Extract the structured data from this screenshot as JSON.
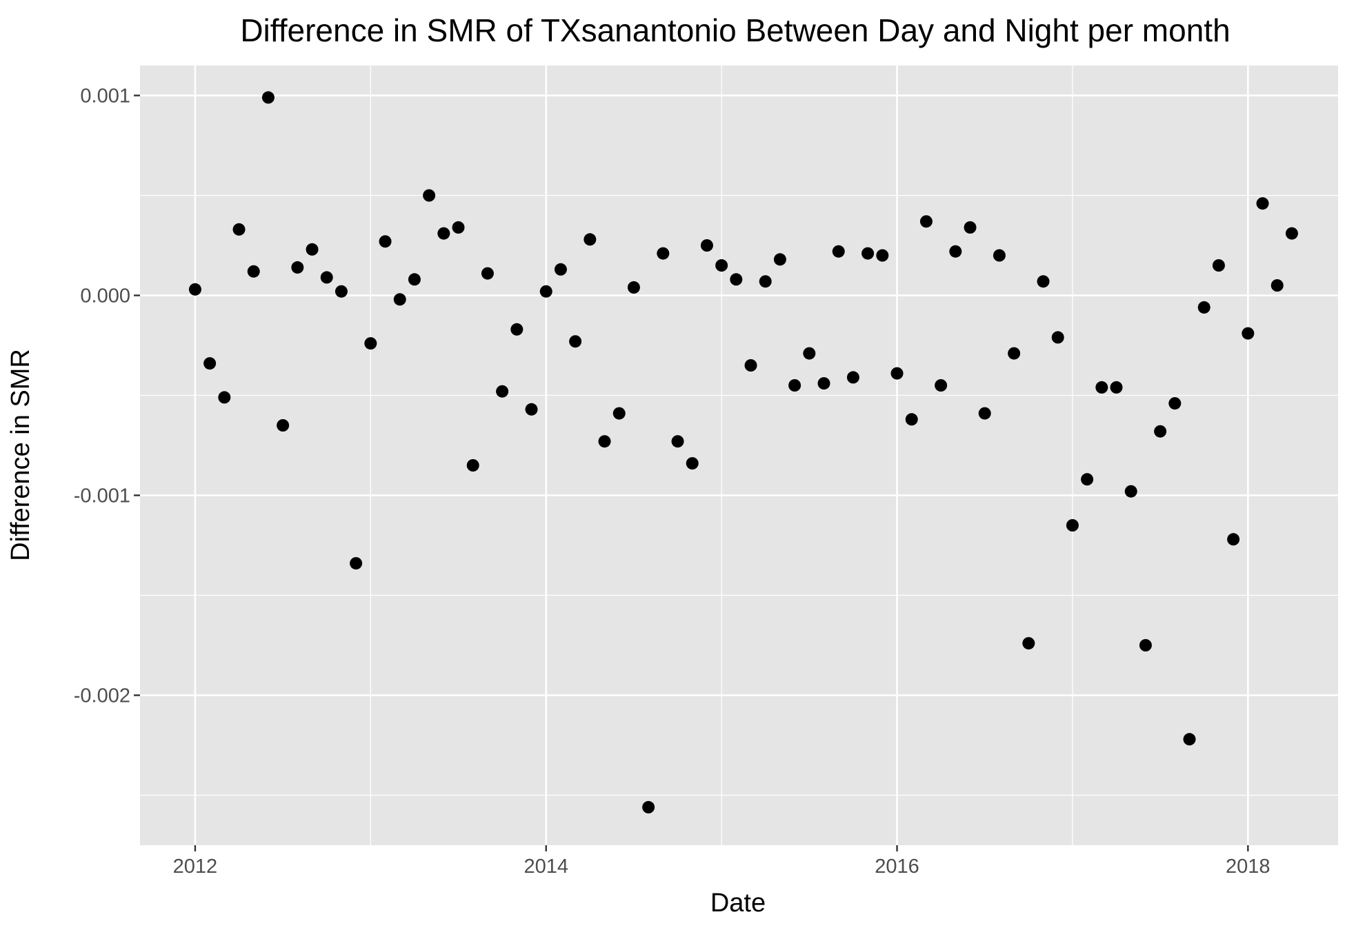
{
  "chart_data": {
    "type": "scatter",
    "title": "Difference in SMR of TXsanantonio Between Day and Night per month",
    "xlabel": "Date",
    "ylabel": "Difference in SMR",
    "x_ticks": [
      "2012",
      "2014",
      "2016",
      "2018"
    ],
    "y_ticks": [
      "0.001",
      "0.000",
      "-0.001",
      "-0.002"
    ],
    "xlim": [
      "2011-09-08",
      "2018-07-06"
    ],
    "ylim": [
      -0.00275,
      0.00115
    ],
    "grid": true,
    "legend": "none",
    "colors": {
      "panel_background": "#e5e5e5",
      "grid_line": "#ffffff",
      "point": "#000000",
      "tick_label": "#4d4d4d",
      "tick_mark": "#333333"
    },
    "points": [
      {
        "x": "2012-01",
        "y": 3e-05
      },
      {
        "x": "2012-02",
        "y": -0.00034
      },
      {
        "x": "2012-03",
        "y": -0.00051
      },
      {
        "x": "2012-04",
        "y": 0.00033
      },
      {
        "x": "2012-05",
        "y": 0.00012
      },
      {
        "x": "2012-06",
        "y": 0.00099
      },
      {
        "x": "2012-07",
        "y": -0.00065
      },
      {
        "x": "2012-08",
        "y": 0.00014
      },
      {
        "x": "2012-09",
        "y": 0.00023
      },
      {
        "x": "2012-10",
        "y": 9e-05
      },
      {
        "x": "2012-11",
        "y": 2e-05
      },
      {
        "x": "2012-12",
        "y": -0.00134
      },
      {
        "x": "2013-01",
        "y": -0.00024
      },
      {
        "x": "2013-02",
        "y": 0.00027
      },
      {
        "x": "2013-03",
        "y": -2e-05
      },
      {
        "x": "2013-04",
        "y": 8e-05
      },
      {
        "x": "2013-05",
        "y": 0.0005
      },
      {
        "x": "2013-06",
        "y": 0.00031
      },
      {
        "x": "2013-07",
        "y": 0.00034
      },
      {
        "x": "2013-08",
        "y": -0.00085
      },
      {
        "x": "2013-09",
        "y": 0.00011
      },
      {
        "x": "2013-10",
        "y": -0.00048
      },
      {
        "x": "2013-11",
        "y": -0.00017
      },
      {
        "x": "2013-12",
        "y": -0.00057
      },
      {
        "x": "2014-01",
        "y": 2e-05
      },
      {
        "x": "2014-02",
        "y": 0.00013
      },
      {
        "x": "2014-03",
        "y": -0.00023
      },
      {
        "x": "2014-04",
        "y": 0.00028
      },
      {
        "x": "2014-05",
        "y": -0.00073
      },
      {
        "x": "2014-06",
        "y": -0.00059
      },
      {
        "x": "2014-07",
        "y": 4e-05
      },
      {
        "x": "2014-08",
        "y": -0.00256
      },
      {
        "x": "2014-09",
        "y": 0.00021
      },
      {
        "x": "2014-10",
        "y": -0.00073
      },
      {
        "x": "2014-11",
        "y": -0.00084
      },
      {
        "x": "2014-12",
        "y": 0.00025
      },
      {
        "x": "2015-01",
        "y": 0.00015
      },
      {
        "x": "2015-02",
        "y": 8e-05
      },
      {
        "x": "2015-03",
        "y": -0.00035
      },
      {
        "x": "2015-04",
        "y": 7e-05
      },
      {
        "x": "2015-05",
        "y": 0.00018
      },
      {
        "x": "2015-06",
        "y": -0.00045
      },
      {
        "x": "2015-07",
        "y": -0.00029
      },
      {
        "x": "2015-08",
        "y": -0.00044
      },
      {
        "x": "2015-09",
        "y": 0.00022
      },
      {
        "x": "2015-10",
        "y": -0.00041
      },
      {
        "x": "2015-11",
        "y": 0.00021
      },
      {
        "x": "2015-12",
        "y": 0.0002
      },
      {
        "x": "2016-01",
        "y": -0.00039
      },
      {
        "x": "2016-02",
        "y": -0.00062
      },
      {
        "x": "2016-03",
        "y": 0.00037
      },
      {
        "x": "2016-04",
        "y": -0.00045
      },
      {
        "x": "2016-05",
        "y": 0.00022
      },
      {
        "x": "2016-06",
        "y": 0.00034
      },
      {
        "x": "2016-07",
        "y": -0.00059
      },
      {
        "x": "2016-08",
        "y": 0.0002
      },
      {
        "x": "2016-09",
        "y": -0.00029
      },
      {
        "x": "2016-10",
        "y": -0.00174
      },
      {
        "x": "2016-11",
        "y": 7e-05
      },
      {
        "x": "2016-12",
        "y": -0.00021
      },
      {
        "x": "2017-01",
        "y": -0.00115
      },
      {
        "x": "2017-02",
        "y": -0.00092
      },
      {
        "x": "2017-03",
        "y": -0.00046
      },
      {
        "x": "2017-04",
        "y": -0.00046
      },
      {
        "x": "2017-05",
        "y": -0.00098
      },
      {
        "x": "2017-06",
        "y": -0.00175
      },
      {
        "x": "2017-07",
        "y": -0.00068
      },
      {
        "x": "2017-08",
        "y": -0.00054
      },
      {
        "x": "2017-09",
        "y": -0.00222
      },
      {
        "x": "2017-10",
        "y": -6e-05
      },
      {
        "x": "2017-11",
        "y": 0.00015
      },
      {
        "x": "2017-12",
        "y": -0.00122
      },
      {
        "x": "2018-01",
        "y": -0.00019
      },
      {
        "x": "2018-02",
        "y": 0.00046
      },
      {
        "x": "2018-03",
        "y": 5e-05
      },
      {
        "x": "2018-04",
        "y": 0.00031
      }
    ]
  }
}
